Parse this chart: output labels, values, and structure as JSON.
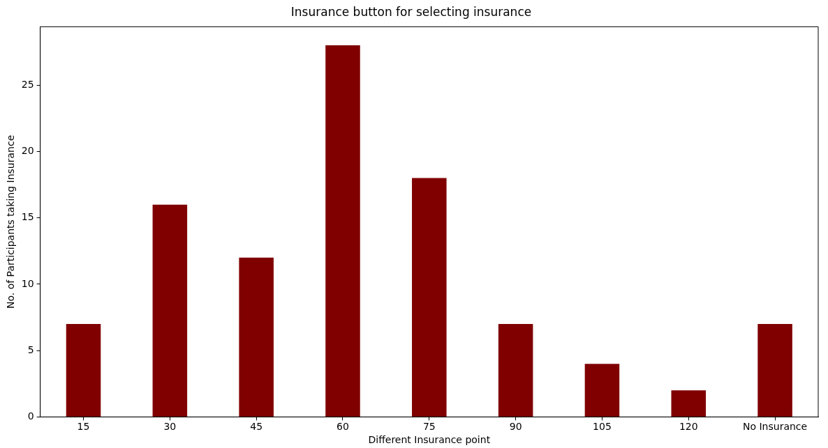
{
  "chart_data": {
    "type": "bar",
    "title": "Insurance button for selecting insurance",
    "xlabel": "Different Insurance point",
    "ylabel": "No. of Participants taking Insurance",
    "categories": [
      "15",
      "30",
      "45",
      "60",
      "75",
      "90",
      "105",
      "120",
      "No Insurance"
    ],
    "values": [
      7,
      16,
      12,
      28,
      18,
      7,
      4,
      2,
      7
    ],
    "color": "#800000",
    "ylim": [
      0,
      29.4
    ],
    "yticks": [
      0,
      5,
      10,
      15,
      20,
      25
    ],
    "grid": false,
    "legend": false
  }
}
